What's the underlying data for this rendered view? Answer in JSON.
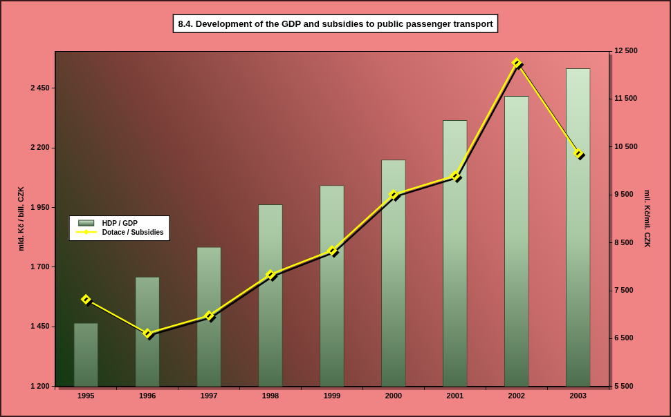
{
  "chart_data": {
    "type": "bar",
    "title": "8.4. Development of the GDP and subsidies to public passenger transport",
    "categories": [
      "1995",
      "1996",
      "1997",
      "1998",
      "1999",
      "2000",
      "2001",
      "2002",
      "2003"
    ],
    "y_label": "mld. Kč / bill. CZK",
    "y2_label": "mil. Kč/mil. CZK",
    "series": [
      {
        "name": "HDP / GDP",
        "type": "bar",
        "color": "#d4ecd0",
        "values": [
          1467,
          1660,
          1785,
          1963,
          2043,
          2150,
          2316,
          2417,
          2533
        ]
      },
      {
        "name": "Dotace / Subsidies",
        "type": "line",
        "color": "#ffff00",
        "marker": "diamond",
        "axis": "y2",
        "values": [
          7320,
          6610,
          6980,
          7840,
          8340,
          9510,
          9900,
          12260,
          10370
        ]
      }
    ],
    "ylim": [
      1200,
      2605
    ],
    "yticks": [
      {
        "value": 1200,
        "label": "1 200"
      },
      {
        "value": 1450,
        "label": "1 450"
      },
      {
        "value": 1700,
        "label": "1 700"
      },
      {
        "value": 1950,
        "label": "1 950"
      },
      {
        "value": 2200,
        "label": "2 200"
      },
      {
        "value": 2450,
        "label": "2 450"
      }
    ],
    "y2lim": [
      5500,
      12500
    ],
    "y2ticks": [
      {
        "value": 5500,
        "label": "5 500"
      },
      {
        "value": 6500,
        "label": "6 500"
      },
      {
        "value": 7500,
        "label": "7 500"
      },
      {
        "value": 8500,
        "label": "8 500"
      },
      {
        "value": 9500,
        "label": "9 500"
      },
      {
        "value": 10500,
        "label": "10 500"
      },
      {
        "value": 11500,
        "label": "11 500"
      },
      {
        "value": 12500,
        "label": "12 500"
      }
    ],
    "grid": false,
    "legend": "left"
  }
}
